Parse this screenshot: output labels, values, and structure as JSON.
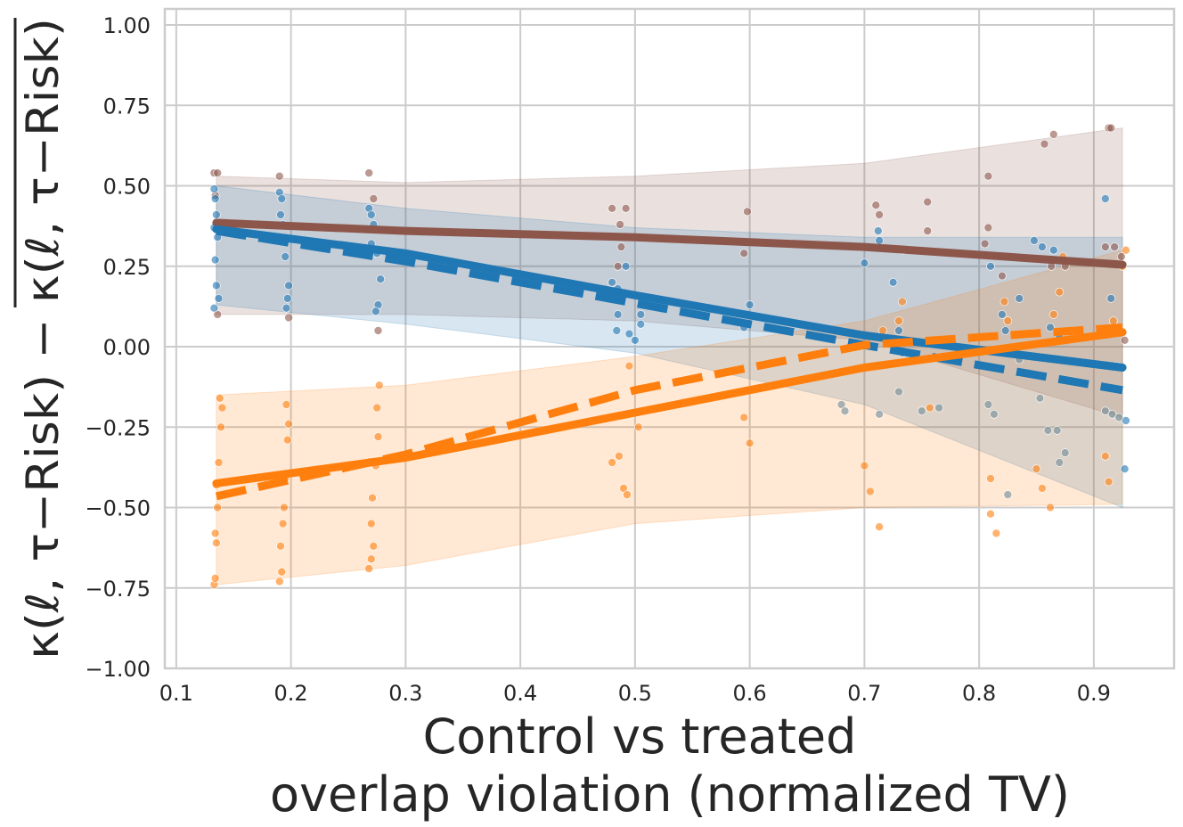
{
  "chart_data": {
    "type": "scatter",
    "xlabel_line1": "Control vs treated",
    "xlabel_line2": "overlap violation (normalized TV)",
    "ylabel": "κ(ℓ, τ−Risk) − κ(ℓ, τ−Risk)",
    "xlim": [
      0.09,
      0.97
    ],
    "ylim": [
      -1.0,
      1.05
    ],
    "grid": true,
    "x_ticks": [
      0.1,
      0.2,
      0.3,
      0.4,
      0.5,
      0.6,
      0.7,
      0.8,
      0.9
    ],
    "x_tick_labels": [
      "0.1",
      "0.2",
      "0.3",
      "0.4",
      "0.5",
      "0.6",
      "0.7",
      "0.8",
      "0.9"
    ],
    "y_ticks": [
      -1.0,
      -0.75,
      -0.5,
      -0.25,
      0.0,
      0.25,
      0.5,
      0.75,
      1.0
    ],
    "y_tick_labels": [
      "−1.00",
      "−0.75",
      "−0.50",
      "−0.25",
      "0.00",
      "0.25",
      "0.50",
      "0.75",
      "1.00"
    ],
    "series": [
      {
        "color": "#8c564b",
        "fit_solid": [
          [
            0.135,
            0.385
          ],
          [
            0.3,
            0.36
          ],
          [
            0.5,
            0.34
          ],
          [
            0.7,
            0.31
          ],
          [
            0.925,
            0.255
          ]
        ],
        "band": {
          "x": [
            0.135,
            0.3,
            0.5,
            0.7,
            0.925
          ],
          "upper": [
            0.53,
            0.51,
            0.53,
            0.57,
            0.68
          ],
          "lower": [
            0.1,
            0.1,
            0.08,
            0.02,
            -0.22
          ]
        },
        "points": [
          [
            0.133,
            0.54
          ],
          [
            0.136,
            0.54
          ],
          [
            0.134,
            0.47
          ],
          [
            0.136,
            0.1
          ],
          [
            0.19,
            0.53
          ],
          [
            0.198,
            0.09
          ],
          [
            0.268,
            0.54
          ],
          [
            0.272,
            0.46
          ],
          [
            0.276,
            0.05
          ],
          [
            0.48,
            0.43
          ],
          [
            0.487,
            0.38
          ],
          [
            0.488,
            0.31
          ],
          [
            0.492,
            0.43
          ],
          [
            0.485,
            0.25
          ],
          [
            0.595,
            0.29
          ],
          [
            0.598,
            0.42
          ],
          [
            0.71,
            0.44
          ],
          [
            0.713,
            0.41
          ],
          [
            0.733,
            0.3
          ],
          [
            0.755,
            0.45
          ],
          [
            0.755,
            0.36
          ],
          [
            0.808,
            0.53
          ],
          [
            0.808,
            0.37
          ],
          [
            0.805,
            0.32
          ],
          [
            0.82,
            0.22
          ],
          [
            0.857,
            0.63
          ],
          [
            0.865,
            0.66
          ],
          [
            0.863,
            0.25
          ],
          [
            0.875,
            0.25
          ],
          [
            0.913,
            0.68
          ],
          [
            0.915,
            0.68
          ],
          [
            0.91,
            0.31
          ],
          [
            0.918,
            0.31
          ],
          [
            0.924,
            0.28
          ],
          [
            0.927,
            0.02
          ]
        ]
      },
      {
        "color": "#1f77b4",
        "fit_solid": [
          [
            0.135,
            0.365
          ],
          [
            0.3,
            0.29
          ],
          [
            0.5,
            0.16
          ],
          [
            0.7,
            0.035
          ],
          [
            0.925,
            -0.065
          ]
        ],
        "fit_dashed": [
          [
            0.135,
            0.36
          ],
          [
            0.3,
            0.265
          ],
          [
            0.5,
            0.135
          ],
          [
            0.7,
            0.005
          ],
          [
            0.925,
            -0.135
          ]
        ],
        "band": {
          "x": [
            0.135,
            0.3,
            0.5,
            0.7,
            0.925
          ],
          "upper": [
            0.5,
            0.43,
            0.37,
            0.34,
            0.34
          ],
          "lower": [
            0.13,
            0.07,
            -0.02,
            -0.18,
            -0.5
          ]
        },
        "points": [
          [
            0.133,
            0.49
          ],
          [
            0.134,
            0.46
          ],
          [
            0.135,
            0.41
          ],
          [
            0.133,
            0.37
          ],
          [
            0.136,
            0.34
          ],
          [
            0.134,
            0.27
          ],
          [
            0.135,
            0.19
          ],
          [
            0.137,
            0.15
          ],
          [
            0.133,
            0.12
          ],
          [
            0.19,
            0.48
          ],
          [
            0.192,
            0.46
          ],
          [
            0.191,
            0.41
          ],
          [
            0.193,
            0.38
          ],
          [
            0.195,
            0.28
          ],
          [
            0.198,
            0.19
          ],
          [
            0.197,
            0.15
          ],
          [
            0.196,
            0.12
          ],
          [
            0.268,
            0.43
          ],
          [
            0.27,
            0.41
          ],
          [
            0.272,
            0.38
          ],
          [
            0.27,
            0.32
          ],
          [
            0.275,
            0.29
          ],
          [
            0.278,
            0.21
          ],
          [
            0.276,
            0.13
          ],
          [
            0.274,
            0.11
          ],
          [
            0.48,
            0.2
          ],
          [
            0.485,
            0.18
          ],
          [
            0.492,
            0.25
          ],
          [
            0.485,
            0.1
          ],
          [
            0.484,
            0.05
          ],
          [
            0.495,
            0.04
          ],
          [
            0.5,
            0.02
          ],
          [
            0.505,
            0.1
          ],
          [
            0.505,
            0.07
          ],
          [
            0.6,
            0.13
          ],
          [
            0.595,
            0.06
          ],
          [
            0.7,
            0.26
          ],
          [
            0.712,
            0.36
          ],
          [
            0.713,
            0.33
          ],
          [
            0.725,
            0.2
          ],
          [
            0.73,
            0.05
          ],
          [
            0.757,
            0.01
          ],
          [
            0.81,
            0.25
          ],
          [
            0.82,
            0.1
          ],
          [
            0.823,
            0.05
          ],
          [
            0.835,
            0.15
          ],
          [
            0.848,
            0.33
          ],
          [
            0.855,
            0.31
          ],
          [
            0.865,
            0.3
          ],
          [
            0.862,
            0.06
          ],
          [
            0.87,
            0.03
          ],
          [
            0.91,
            0.46
          ],
          [
            0.915,
            0.15
          ],
          [
            0.92,
            -0.06
          ],
          [
            0.928,
            -0.23
          ],
          [
            0.927,
            -0.38
          ]
        ]
      },
      {
        "color": "#ff7f0e",
        "fit_solid": [
          [
            0.135,
            -0.425
          ],
          [
            0.3,
            -0.345
          ],
          [
            0.5,
            -0.205
          ],
          [
            0.7,
            -0.065
          ],
          [
            0.925,
            0.045
          ]
        ],
        "fit_dashed": [
          [
            0.135,
            -0.465
          ],
          [
            0.3,
            -0.335
          ],
          [
            0.5,
            -0.135
          ],
          [
            0.7,
            0.005
          ],
          [
            0.925,
            0.06
          ]
        ],
        "band": {
          "x": [
            0.135,
            0.3,
            0.5,
            0.7,
            0.925
          ],
          "upper": [
            -0.15,
            -0.12,
            -0.03,
            0.08,
            0.3
          ],
          "lower": [
            -0.74,
            -0.68,
            -0.55,
            -0.5,
            -0.49
          ]
        },
        "points": [
          [
            0.133,
            -0.74
          ],
          [
            0.134,
            -0.72
          ],
          [
            0.135,
            -0.61
          ],
          [
            0.134,
            -0.58
          ],
          [
            0.136,
            -0.5
          ],
          [
            0.135,
            -0.43
          ],
          [
            0.137,
            -0.36
          ],
          [
            0.139,
            -0.25
          ],
          [
            0.14,
            -0.19
          ],
          [
            0.138,
            -0.16
          ],
          [
            0.19,
            -0.73
          ],
          [
            0.192,
            -0.7
          ],
          [
            0.191,
            -0.62
          ],
          [
            0.193,
            -0.55
          ],
          [
            0.194,
            -0.5
          ],
          [
            0.195,
            -0.41
          ],
          [
            0.197,
            -0.29
          ],
          [
            0.198,
            -0.24
          ],
          [
            0.196,
            -0.18
          ],
          [
            0.268,
            -0.69
          ],
          [
            0.27,
            -0.66
          ],
          [
            0.272,
            -0.62
          ],
          [
            0.27,
            -0.55
          ],
          [
            0.271,
            -0.47
          ],
          [
            0.274,
            -0.37
          ],
          [
            0.276,
            -0.28
          ],
          [
            0.275,
            -0.19
          ],
          [
            0.277,
            -0.12
          ],
          [
            0.48,
            -0.36
          ],
          [
            0.486,
            -0.34
          ],
          [
            0.49,
            -0.44
          ],
          [
            0.493,
            -0.46
          ],
          [
            0.495,
            -0.06
          ],
          [
            0.503,
            -0.25
          ],
          [
            0.595,
            -0.22
          ],
          [
            0.6,
            -0.3
          ],
          [
            0.7,
            -0.37
          ],
          [
            0.705,
            -0.45
          ],
          [
            0.713,
            -0.56
          ],
          [
            0.716,
            0.05
          ],
          [
            0.73,
            0.08
          ],
          [
            0.733,
            0.14
          ],
          [
            0.757,
            -0.19
          ],
          [
            0.81,
            -0.41
          ],
          [
            0.81,
            -0.52
          ],
          [
            0.815,
            -0.58
          ],
          [
            0.822,
            0.14
          ],
          [
            0.825,
            0.08
          ],
          [
            0.85,
            -0.38
          ],
          [
            0.855,
            -0.44
          ],
          [
            0.862,
            -0.5
          ],
          [
            0.865,
            0.1
          ],
          [
            0.87,
            0.17
          ],
          [
            0.873,
            0.28
          ],
          [
            0.91,
            -0.34
          ],
          [
            0.913,
            -0.42
          ],
          [
            0.917,
            0.08
          ],
          [
            0.925,
            0.25
          ],
          [
            0.928,
            0.3
          ]
        ]
      },
      {
        "color": "#708a96",
        "points": [
          [
            0.68,
            -0.18
          ],
          [
            0.683,
            -0.2
          ],
          [
            0.713,
            -0.21
          ],
          [
            0.73,
            -0.14
          ],
          [
            0.733,
            -0.02
          ],
          [
            0.75,
            -0.2
          ],
          [
            0.765,
            -0.19
          ],
          [
            0.808,
            -0.18
          ],
          [
            0.813,
            -0.21
          ],
          [
            0.825,
            -0.46
          ],
          [
            0.835,
            -0.04
          ],
          [
            0.853,
            -0.16
          ],
          [
            0.86,
            -0.26
          ],
          [
            0.868,
            -0.26
          ],
          [
            0.87,
            -0.36
          ],
          [
            0.875,
            -0.33
          ],
          [
            0.91,
            -0.2
          ],
          [
            0.916,
            -0.21
          ],
          [
            0.922,
            -0.22
          ]
        ]
      }
    ]
  }
}
